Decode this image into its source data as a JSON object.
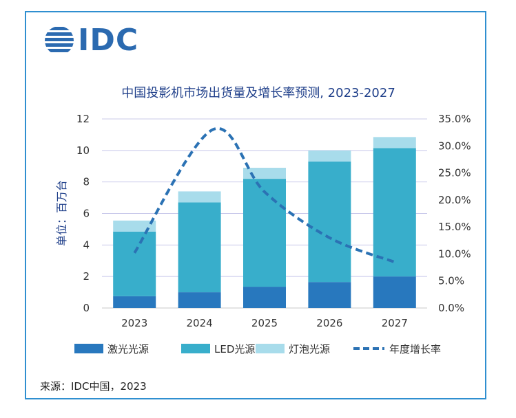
{
  "logo": {
    "text": "IDC"
  },
  "source": "来源：IDC中国，2023",
  "chart_data": {
    "type": "bar",
    "stacked": true,
    "title": "中国投影机市场出货量及增长率预测, 2023-2027",
    "ylabel": "单位：百万台",
    "ylim": [
      0,
      12
    ],
    "y2lim": [
      0,
      35
    ],
    "yticks": [
      "0",
      "2",
      "4",
      "6",
      "8",
      "10",
      "12"
    ],
    "y2ticks": [
      "0.0%",
      "5.0%",
      "10.0%",
      "15.0%",
      "20.0%",
      "25.0%",
      "30.0%",
      "35.0%"
    ],
    "categories": [
      "2023",
      "2024",
      "2025",
      "2026",
      "2027"
    ],
    "series": [
      {
        "name": "激光光源",
        "type": "bar",
        "color": "#2878be",
        "values": [
          0.75,
          1.0,
          1.35,
          1.65,
          2.0
        ]
      },
      {
        "name": "LED光源",
        "type": "bar",
        "color": "#38aecb",
        "values": [
          4.1,
          5.7,
          6.85,
          7.65,
          8.15
        ]
      },
      {
        "name": "灯泡光源",
        "type": "bar",
        "color": "#a8dceb",
        "values": [
          0.7,
          0.7,
          0.7,
          0.7,
          0.7
        ]
      },
      {
        "name": "年度增长率",
        "type": "line",
        "axis": "right",
        "color": "#2b72b4",
        "values": [
          10.2,
          33.0,
          21.5,
          13.0,
          8.5
        ],
        "peak": {
          "x": 2.2,
          "value": 33.0
        }
      }
    ],
    "legend": "bottom",
    "grid": true
  }
}
